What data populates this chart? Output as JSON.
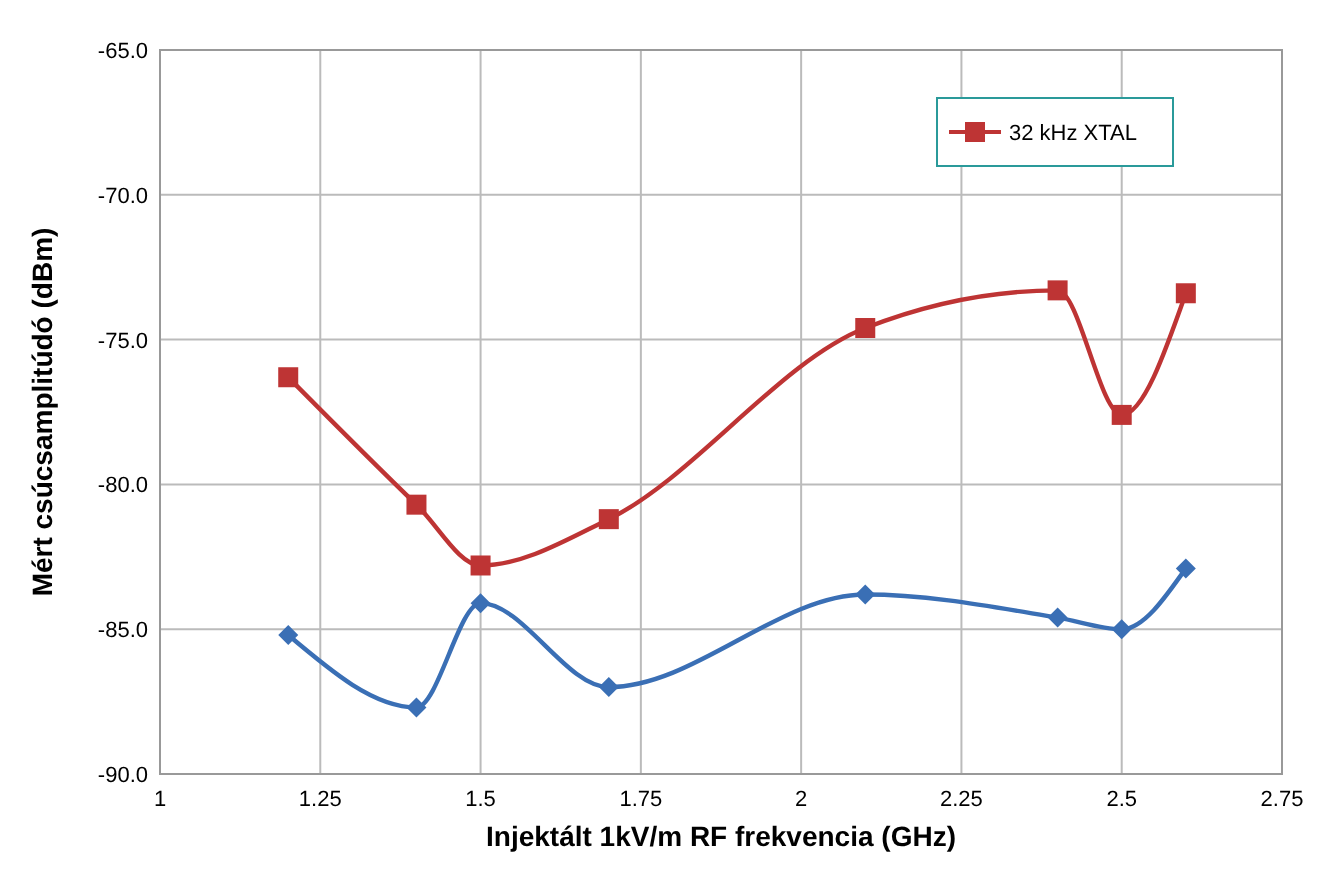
{
  "chart_data": {
    "type": "line",
    "xlabel": "Injektált 1kV/m RF frekvencia (GHz)",
    "ylabel": "Mért csúcsamplitúdó (dBm)",
    "x": [
      1.2,
      1.4,
      1.5,
      1.7,
      2.1,
      2.4,
      2.5,
      2.6
    ],
    "series": [
      {
        "color": "#3a6fb5",
        "marker": "diamond",
        "values": [
          -85.2,
          -87.7,
          -84.1,
          -87.0,
          -83.8,
          -84.6,
          -85.0,
          -82.9
        ]
      },
      {
        "name": "32 kHz XTAL",
        "color": "#be3434",
        "marker": "square",
        "values": [
          -76.3,
          -80.7,
          -82.8,
          -81.2,
          -74.6,
          -73.3,
          -77.6,
          -73.4
        ]
      }
    ],
    "xlim": [
      1,
      2.75
    ],
    "xticks": [
      1,
      1.25,
      1.5,
      1.75,
      2,
      2.25,
      2.5,
      2.75
    ],
    "ylim": [
      -90,
      -65
    ],
    "yticks": [
      {
        "value": -90,
        "label": "-90.0"
      },
      {
        "value": -85,
        "label": "-85.0"
      },
      {
        "value": -80,
        "label": "-80.0"
      },
      {
        "value": -75,
        "label": "-75.0"
      },
      {
        "value": -70,
        "label": "-70.0"
      },
      {
        "value": -65,
        "label": "-65.0"
      }
    ],
    "grid": true,
    "legend": "top right",
    "line_style": "solid"
  }
}
